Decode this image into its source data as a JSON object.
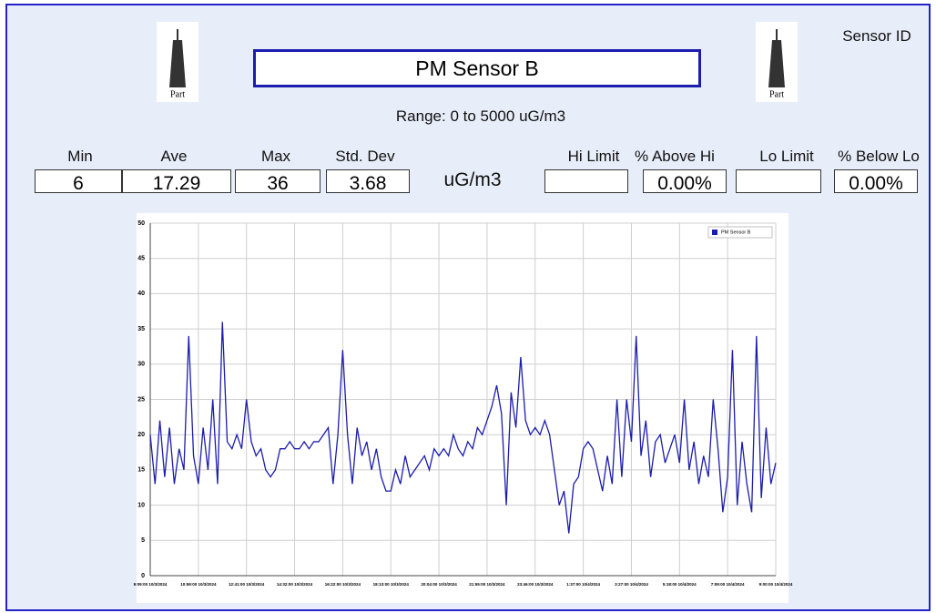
{
  "header": {
    "title": "PM Sensor B",
    "range": "Range: 0 to 5000 uG/m3",
    "sensor_id": "Sensor ID",
    "icons": [
      "Part",
      "Part"
    ],
    "unit": "uG/m3"
  },
  "stats": [
    {
      "label": "Min",
      "value": "6"
    },
    {
      "label": "Ave",
      "value": "17.29"
    },
    {
      "label": "Max",
      "value": "36"
    },
    {
      "label": "Std. Dev",
      "value": "3.68"
    }
  ],
  "limits": [
    {
      "label": "Hi Limit"
    },
    {
      "label": "% Above Hi",
      "value": "0.00%"
    },
    {
      "label": "Lo Limit"
    },
    {
      "label": "% Below Lo",
      "value": "0.00%"
    }
  ],
  "chart_data": {
    "type": "line",
    "x": [
      0,
      1,
      2,
      3,
      4,
      5,
      6,
      7,
      8,
      9,
      10,
      11,
      12,
      13,
      14,
      15,
      16,
      17,
      18,
      19,
      20,
      21,
      22,
      23,
      24,
      25,
      26,
      27,
      28,
      29,
      30,
      31,
      32,
      33,
      34,
      35,
      36,
      37,
      38,
      39,
      40,
      41,
      42,
      43,
      44,
      45,
      46,
      47,
      48,
      49,
      50,
      51,
      52,
      53,
      54,
      55,
      56,
      57,
      58,
      59,
      60,
      61,
      62,
      63,
      64,
      65,
      66,
      67,
      68,
      69,
      70,
      71,
      72,
      73,
      74,
      75,
      76,
      77,
      78,
      79,
      80,
      81,
      82,
      83,
      84,
      85,
      86,
      87,
      88,
      89,
      90,
      91,
      92,
      93,
      94,
      95,
      96,
      97,
      98,
      99,
      100,
      101,
      102,
      103,
      104,
      105,
      106,
      107,
      108,
      109,
      110,
      111,
      112,
      113,
      114,
      115,
      116,
      117,
      118,
      119,
      120,
      121,
      122,
      123,
      124,
      125,
      126,
      127,
      128,
      129,
      130
    ],
    "series": [
      {
        "name": "PM Sensor B",
        "color": "#1c1cae",
        "values": [
          20,
          13,
          22,
          14,
          21,
          13,
          18,
          15,
          34,
          17,
          13,
          21,
          15,
          25,
          13,
          36,
          19,
          18,
          20,
          18,
          25,
          19,
          17,
          18,
          15,
          14,
          15,
          18,
          18,
          19,
          18,
          18,
          19,
          18,
          19,
          19,
          20,
          21,
          13,
          20,
          32,
          20,
          13,
          21,
          17,
          19,
          15,
          18,
          14,
          12,
          12,
          15,
          13,
          17,
          14,
          15,
          16,
          17,
          15,
          18,
          17,
          18,
          17,
          20,
          18,
          17,
          19,
          18,
          21,
          20,
          22,
          24,
          27,
          23,
          10,
          26,
          21,
          31,
          22,
          20,
          21,
          20,
          22,
          20,
          15,
          10,
          12,
          6,
          13,
          14,
          18,
          19,
          18,
          15,
          12,
          17,
          13,
          25,
          14,
          25,
          19,
          34,
          17,
          22,
          14,
          19,
          20,
          16,
          18,
          20,
          16,
          25,
          15,
          19,
          13,
          17,
          14,
          25,
          18,
          9,
          14,
          32,
          10,
          19,
          13,
          9,
          34,
          11,
          21,
          13,
          16
        ]
      }
    ],
    "xlim": [
      0,
      130
    ],
    "xticks": [
      {
        "value": 0,
        "label": "9:09:00 10/3/2024"
      },
      {
        "value": 10,
        "label": "10:59:00 10/3/2024"
      },
      {
        "value": 20,
        "label": "12:41:00 10/3/2024"
      },
      {
        "value": 30,
        "label": "14:32:00 10/3/2024"
      },
      {
        "value": 40,
        "label": "16:22:00 10/3/2024"
      },
      {
        "value": 50,
        "label": "18:13:00 10/3/2024"
      },
      {
        "value": 60,
        "label": "20:04:00 10/3/2024"
      },
      {
        "value": 70,
        "label": "21:55:00 10/3/2024"
      },
      {
        "value": 80,
        "label": "23:46:00 10/3/2024"
      },
      {
        "value": 90,
        "label": "1:37:00 10/4/2024"
      },
      {
        "value": 100,
        "label": "3:27:00 10/4/2024"
      },
      {
        "value": 110,
        "label": "5:18:00 10/4/2024"
      },
      {
        "value": 120,
        "label": "7:09:00 10/4/2024"
      },
      {
        "value": 130,
        "label": "9:00:00 10/4/2024"
      }
    ],
    "ylim": [
      0,
      50
    ],
    "yticks": [
      0,
      5,
      10,
      15,
      20,
      25,
      30,
      35,
      40,
      45,
      50
    ],
    "grid": true,
    "legend": "upper right"
  }
}
